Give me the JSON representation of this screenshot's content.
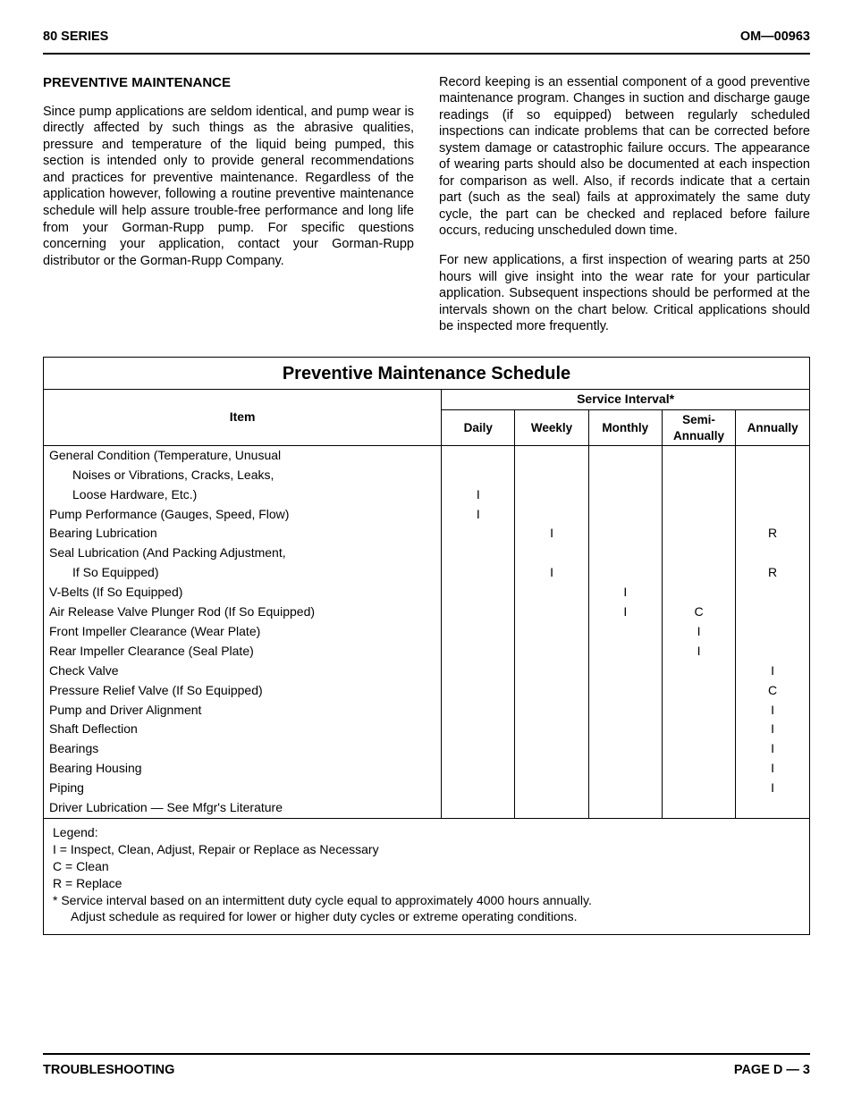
{
  "header": {
    "left": "80 SERIES",
    "right": "OM—00963"
  },
  "heading": "PREVENTIVE MAINTENANCE",
  "para1": "Since pump applications are seldom identical, and pump wear is directly affected by such things as the abrasive qualities, pressure and temperature of the liquid being pumped, this section is intended only to provide general recommendations and practices for preventive maintenance. Regardless of the application however, following a routine preventive maintenance schedule will help assure trouble-free performance and long life from your Gorman-Rupp pump. For specific questions concerning your application, contact your Gorman-Rupp distributor or the Gorman-Rupp Company.",
  "para2": "Record keeping is an essential component of a good preventive maintenance program. Changes in suction and discharge gauge readings (if so equipped) between regularly scheduled inspections can indicate problems that can be corrected before system damage or catastrophic failure occurs. The appearance of wearing parts should also be documented at each inspection for comparison as well. Also, if records indicate that a certain part (such as the seal) fails at approximately the same duty cycle, the part can be checked and replaced before failure occurs, reducing unscheduled down time.",
  "para3": "For new applications, a first inspection of wearing parts at 250 hours will give insight into the wear rate for your particular application. Subsequent inspections should be performed at the intervals shown on the chart below. Critical applications should be inspected more frequently.",
  "schedule": {
    "title": "Preventive Maintenance Schedule",
    "item_header": "Item",
    "service_header": "Service Interval*",
    "columns": [
      "Daily",
      "Weekly",
      "Monthly",
      "Semi-\nAnnually",
      "Annually"
    ],
    "rows": [
      {
        "item": "General Condition (Temperature, Unusual",
        "indent": false,
        "v": [
          "",
          "",
          "",
          "",
          ""
        ]
      },
      {
        "item": "Noises or Vibrations, Cracks, Leaks,",
        "indent": true,
        "v": [
          "",
          "",
          "",
          "",
          ""
        ]
      },
      {
        "item": "Loose Hardware, Etc.)",
        "indent": true,
        "v": [
          "I",
          "",
          "",
          "",
          ""
        ]
      },
      {
        "item": "Pump Performance (Gauges, Speed, Flow)",
        "indent": false,
        "v": [
          "I",
          "",
          "",
          "",
          ""
        ]
      },
      {
        "item": "Bearing Lubrication",
        "indent": false,
        "v": [
          "",
          "I",
          "",
          "",
          "R"
        ]
      },
      {
        "item": "Seal Lubrication (And Packing Adjustment,",
        "indent": false,
        "v": [
          "",
          "",
          "",
          "",
          ""
        ]
      },
      {
        "item": "If So Equipped)",
        "indent": true,
        "v": [
          "",
          "I",
          "",
          "",
          "R"
        ]
      },
      {
        "item": "V-Belts (If So Equipped)",
        "indent": false,
        "v": [
          "",
          "",
          "I",
          "",
          ""
        ]
      },
      {
        "item": "Air Release Valve Plunger Rod (If So Equipped)",
        "indent": false,
        "v": [
          "",
          "",
          "I",
          "C",
          ""
        ]
      },
      {
        "item": "Front Impeller Clearance (Wear Plate)",
        "indent": false,
        "v": [
          "",
          "",
          "",
          "I",
          ""
        ]
      },
      {
        "item": "Rear Impeller Clearance (Seal Plate)",
        "indent": false,
        "v": [
          "",
          "",
          "",
          "I",
          ""
        ]
      },
      {
        "item": "Check Valve",
        "indent": false,
        "v": [
          "",
          "",
          "",
          "",
          "I"
        ]
      },
      {
        "item": "Pressure Relief Valve (If So Equipped)",
        "indent": false,
        "v": [
          "",
          "",
          "",
          "",
          "C"
        ]
      },
      {
        "item": "Pump and Driver Alignment",
        "indent": false,
        "v": [
          "",
          "",
          "",
          "",
          "I"
        ]
      },
      {
        "item": "Shaft Deflection",
        "indent": false,
        "v": [
          "",
          "",
          "",
          "",
          "I"
        ]
      },
      {
        "item": "Bearings",
        "indent": false,
        "v": [
          "",
          "",
          "",
          "",
          "I"
        ]
      },
      {
        "item": "Bearing Housing",
        "indent": false,
        "v": [
          "",
          "",
          "",
          "",
          "I"
        ]
      },
      {
        "item": "Piping",
        "indent": false,
        "v": [
          "",
          "",
          "",
          "",
          "I"
        ]
      },
      {
        "item": "Driver Lubrication — See Mfgr's Literature",
        "indent": false,
        "v": [
          "",
          "",
          "",
          "",
          ""
        ]
      }
    ]
  },
  "legend": {
    "title": "Legend:",
    "l1": "I  =  Inspect, Clean, Adjust, Repair or Replace as Necessary",
    "l2": "C =  Clean",
    "l3": "R =  Replace",
    "note1": "*   Service interval based on an intermittent duty cycle equal to approximately 4000 hours annually.",
    "note2": "Adjust schedule as required for lower or higher duty cycles or extreme operating conditions."
  },
  "footer": {
    "left": "TROUBLESHOOTING",
    "right": "PAGE D — 3"
  }
}
